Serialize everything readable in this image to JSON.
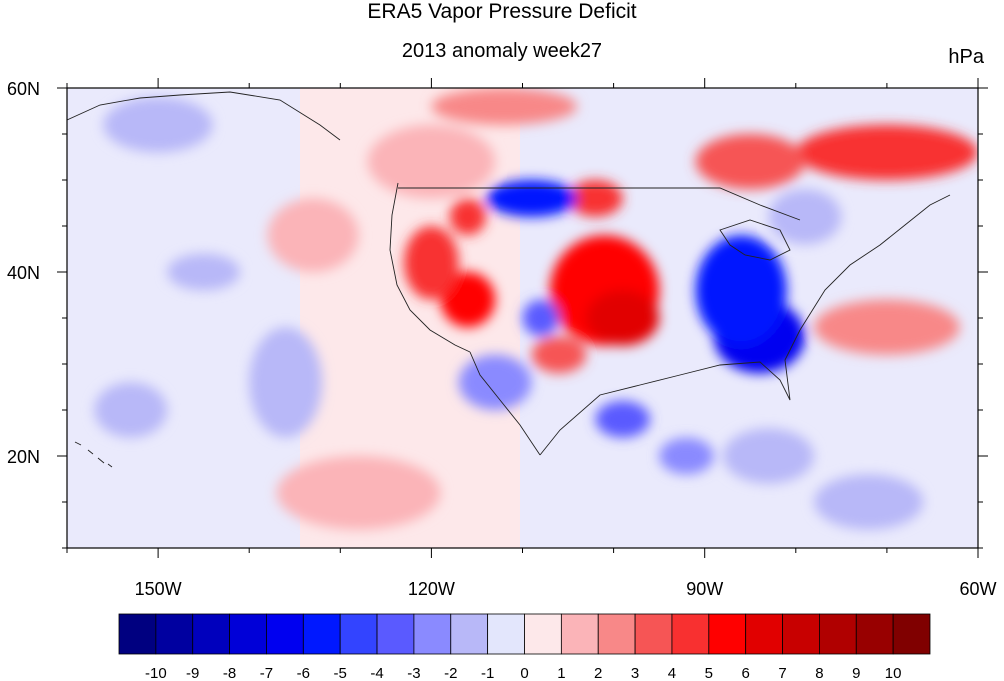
{
  "title": "ERA5 Vapor Pressure Deficit",
  "subtitle": "2013 anomaly week27",
  "units": "hPa",
  "map": {
    "lon_range": [
      -160,
      -60
    ],
    "lat_range": [
      10,
      60
    ],
    "x_ticks": [
      {
        "lon": -150,
        "label": "150W"
      },
      {
        "lon": -120,
        "label": "120W"
      },
      {
        "lon": -90,
        "label": "90W"
      },
      {
        "lon": -60,
        "label": "60W"
      }
    ],
    "y_ticks": [
      {
        "lat": 60,
        "label": "60N"
      },
      {
        "lat": 40,
        "label": "40N"
      },
      {
        "lat": 20,
        "label": "20N"
      }
    ],
    "features": [
      {
        "kind": "red",
        "level": 5,
        "lon": -101,
        "lat": 38,
        "rx": 6,
        "ry": 6
      },
      {
        "kind": "red",
        "level": 6,
        "lon": -99,
        "lat": 35,
        "rx": 4,
        "ry": 3
      },
      {
        "kind": "red",
        "level": 5,
        "lon": -116,
        "lat": 37,
        "rx": 3,
        "ry": 3
      },
      {
        "kind": "red",
        "level": 4,
        "lon": -120,
        "lat": 41,
        "rx": 3,
        "ry": 4
      },
      {
        "kind": "red",
        "level": 4,
        "lon": -116,
        "lat": 46,
        "rx": 2,
        "ry": 2
      },
      {
        "kind": "red",
        "level": 3,
        "lon": -106,
        "lat": 31,
        "rx": 3,
        "ry": 2
      },
      {
        "kind": "red",
        "level": 4,
        "lon": -102,
        "lat": 48,
        "rx": 3,
        "ry": 2
      },
      {
        "kind": "red",
        "level": 4,
        "lon": -70,
        "lat": 53,
        "rx": 10,
        "ry": 3
      },
      {
        "kind": "red",
        "level": 3,
        "lon": -85,
        "lat": 52,
        "rx": 6,
        "ry": 3
      },
      {
        "kind": "red",
        "level": 2,
        "lon": -112,
        "lat": 58,
        "rx": 8,
        "ry": 2
      },
      {
        "kind": "red",
        "level": 2,
        "lon": -70,
        "lat": 34,
        "rx": 8,
        "ry": 3
      },
      {
        "kind": "red",
        "level": 1,
        "lon": -133,
        "lat": 44,
        "rx": 5,
        "ry": 4
      },
      {
        "kind": "red",
        "level": 1,
        "lon": -128,
        "lat": 16,
        "rx": 9,
        "ry": 4
      },
      {
        "kind": "red",
        "level": 1,
        "lon": -120,
        "lat": 52,
        "rx": 7,
        "ry": 4
      },
      {
        "kind": "blue",
        "level": 6,
        "lon": -84,
        "lat": 33,
        "rx": 5,
        "ry": 4
      },
      {
        "kind": "blue",
        "level": 5,
        "lon": -86,
        "lat": 38,
        "rx": 5,
        "ry": 6
      },
      {
        "kind": "blue",
        "level": 5,
        "lon": -109,
        "lat": 48,
        "rx": 5,
        "ry": 2
      },
      {
        "kind": "blue",
        "level": 3,
        "lon": -108,
        "lat": 35,
        "rx": 2,
        "ry": 2
      },
      {
        "kind": "blue",
        "level": 3,
        "lon": -99,
        "lat": 24,
        "rx": 3,
        "ry": 2
      },
      {
        "kind": "blue",
        "level": 2,
        "lon": -113,
        "lat": 28,
        "rx": 4,
        "ry": 3
      },
      {
        "kind": "blue",
        "level": 2,
        "lon": -92,
        "lat": 20,
        "rx": 3,
        "ry": 2
      },
      {
        "kind": "blue",
        "level": 1,
        "lon": -136,
        "lat": 28,
        "rx": 4,
        "ry": 6
      },
      {
        "kind": "blue",
        "level": 1,
        "lon": -145,
        "lat": 40,
        "rx": 4,
        "ry": 2
      },
      {
        "kind": "blue",
        "level": 1,
        "lon": -153,
        "lat": 25,
        "rx": 4,
        "ry": 3
      },
      {
        "kind": "blue",
        "level": 1,
        "lon": -79,
        "lat": 46,
        "rx": 4,
        "ry": 3
      },
      {
        "kind": "blue",
        "level": 1,
        "lon": -83,
        "lat": 20,
        "rx": 5,
        "ry": 3
      },
      {
        "kind": "blue",
        "level": 1,
        "lon": -150,
        "lat": 56,
        "rx": 6,
        "ry": 3
      },
      {
        "kind": "blue",
        "level": 1,
        "lon": -72,
        "lat": 15,
        "rx": 6,
        "ry": 3
      }
    ]
  },
  "colorbar": {
    "colors": [
      "#000080",
      "#0000a0",
      "#0000bd",
      "#0000d8",
      "#0000f0",
      "#0018ff",
      "#3344ff",
      "#5a5aff",
      "#8a8aff",
      "#b8b8f8",
      "#e3e6fc",
      "#fde8ea",
      "#fbb4b8",
      "#f88888",
      "#f65555",
      "#f83030",
      "#ff0000",
      "#e10000",
      "#c80000",
      "#b00000",
      "#980000",
      "#800000"
    ],
    "labels": [
      "-10",
      "-9",
      "-8",
      "-7",
      "-6",
      "-5",
      "-4",
      "-3",
      "-2",
      "-1",
      "0",
      "1",
      "2",
      "3",
      "4",
      "5",
      "6",
      "7",
      "8",
      "9",
      "10"
    ]
  }
}
